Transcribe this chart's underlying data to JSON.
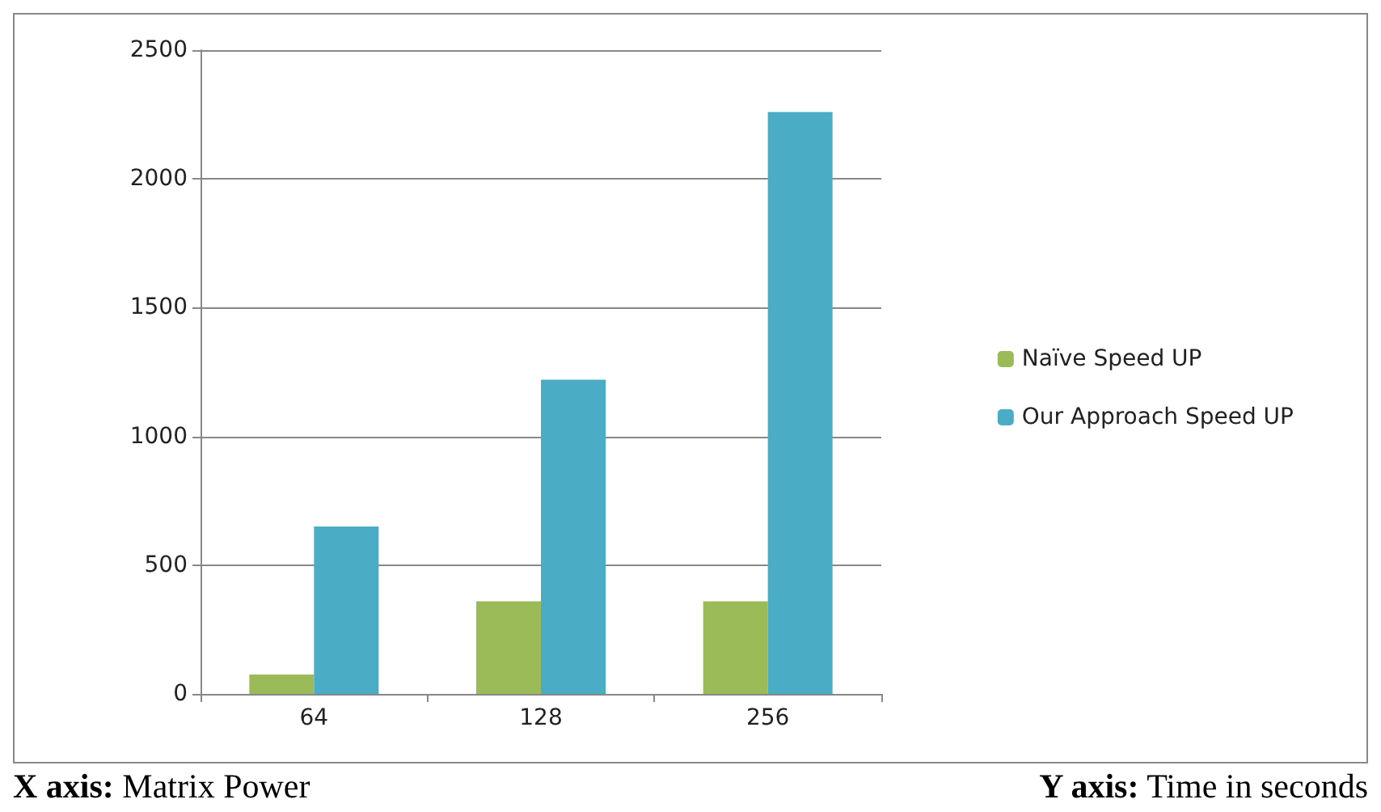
{
  "chart_data": {
    "type": "bar",
    "categories": [
      "64",
      "128",
      "256"
    ],
    "series": [
      {
        "name": "Naïve Speed UP",
        "color": "#9bbb59",
        "values": [
          75,
          360,
          360
        ]
      },
      {
        "name": "Our Approach Speed UP",
        "color": "#4bacc6",
        "values": [
          650,
          1220,
          2260
        ]
      }
    ],
    "ylim": [
      0,
      2500
    ],
    "yticks": [
      0,
      500,
      1000,
      1500,
      2000,
      2500
    ],
    "grid": "y",
    "legend": "right",
    "annotations": [
      "X axis: Matrix Power",
      "Y axis: Time in seconds"
    ]
  }
}
